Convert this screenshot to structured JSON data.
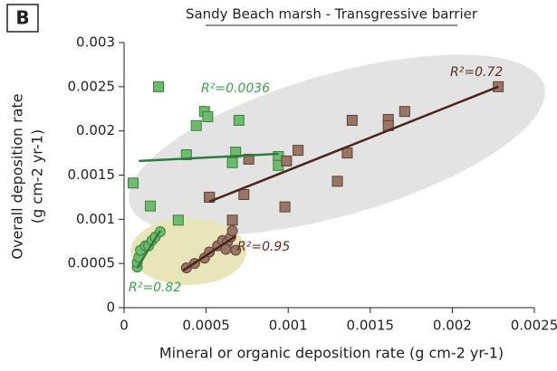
{
  "chart_data": {
    "type": "scatter",
    "panel": "B",
    "title": "Sandy Beach marsh - Transgressive barrier",
    "xlabel": "Mineral or organic deposition rate (g cm-2 yr-1)",
    "ylabel": [
      "Overall deposition rate",
      "(g cm-2 yr-1)"
    ],
    "xlim": [
      0,
      0.0025
    ],
    "ylim": [
      0,
      0.003
    ],
    "xticks": [
      0,
      0.0005,
      0.001,
      0.0015,
      0.002,
      0.0025
    ],
    "yticks": [
      0,
      0.0005,
      0.001,
      0.0015,
      0.002,
      0.0025,
      0.003
    ],
    "series": [
      {
        "marker": "square",
        "color": "#6dbb6d",
        "edge": "#3d7d3d",
        "x": [
          5.5e-05,
          0.00021,
          0.00016,
          0.00033,
          0.00038,
          0.00044,
          0.00049,
          0.00051,
          0.00052,
          0.0007,
          0.00068,
          0.00066,
          0.00094,
          0.00094
        ],
        "y": [
          0.00141,
          0.0025,
          0.00115,
          0.00099,
          0.00173,
          0.00206,
          0.00222,
          0.00216,
          0.00125,
          0.00212,
          0.00176,
          0.00164,
          0.00171,
          0.00161
        ]
      },
      {
        "marker": "square",
        "color": "#9a7566",
        "edge": "#5e4035",
        "x": [
          0.00052,
          0.00073,
          0.00076,
          0.00066,
          0.00098,
          0.00099,
          0.00106,
          0.0013,
          0.00136,
          0.00139,
          0.00161,
          0.00161,
          0.00171,
          0.00228
        ],
        "y": [
          0.00125,
          0.00128,
          0.00168,
          0.00099,
          0.00114,
          0.00166,
          0.00178,
          0.00143,
          0.00175,
          0.00212,
          0.00213,
          0.00206,
          0.00222,
          0.0025
        ]
      },
      {
        "marker": "circle",
        "color": "#6dbb6d",
        "edge": "#3d7d3d",
        "x": [
          8e-05,
          8e-05,
          9e-05,
          0.0001,
          0.00013,
          0.00015,
          0.00017,
          0.00019,
          0.00022
        ],
        "y": [
          0.00046,
          0.00051,
          0.00057,
          0.00065,
          0.0007,
          0.0007,
          0.00076,
          0.0008,
          0.00086
        ]
      },
      {
        "marker": "circle",
        "color": "#9a7566",
        "edge": "#5e4035",
        "x": [
          0.00038,
          0.00043,
          0.00049,
          0.00052,
          0.00057,
          0.0006,
          0.00063,
          0.00065,
          0.00066,
          0.00068,
          0.00062
        ],
        "y": [
          0.00045,
          0.0005,
          0.00056,
          0.00063,
          0.0007,
          0.00076,
          0.00074,
          0.0008,
          0.00087,
          0.00065,
          0.00066
        ]
      }
    ],
    "trendlines": [
      {
        "color": "#2e7d3e",
        "x": [
          9e-05,
          0.00094
        ],
        "y": [
          0.00166,
          0.00174
        ]
      },
      {
        "color": "#4a2418",
        "x": [
          0.00052,
          0.00228
        ],
        "y": [
          0.0012,
          0.0025
        ]
      },
      {
        "color": "#2e7d3e",
        "x": [
          8e-05,
          0.00022
        ],
        "y": [
          0.00045,
          0.00087
        ]
      },
      {
        "color": "#4a2418",
        "x": [
          0.00036,
          0.00068
        ],
        "y": [
          0.00042,
          0.00081
        ]
      }
    ],
    "annotations": [
      {
        "text": "R²=0.0036",
        "color": "#3aa34a"
      },
      {
        "text": "R²=0.72",
        "color": "#5a2f20"
      },
      {
        "text": "R²=0.95",
        "color": "#5a2f20"
      },
      {
        "text": "R²=0.82",
        "color": "#3aa34a"
      }
    ]
  }
}
